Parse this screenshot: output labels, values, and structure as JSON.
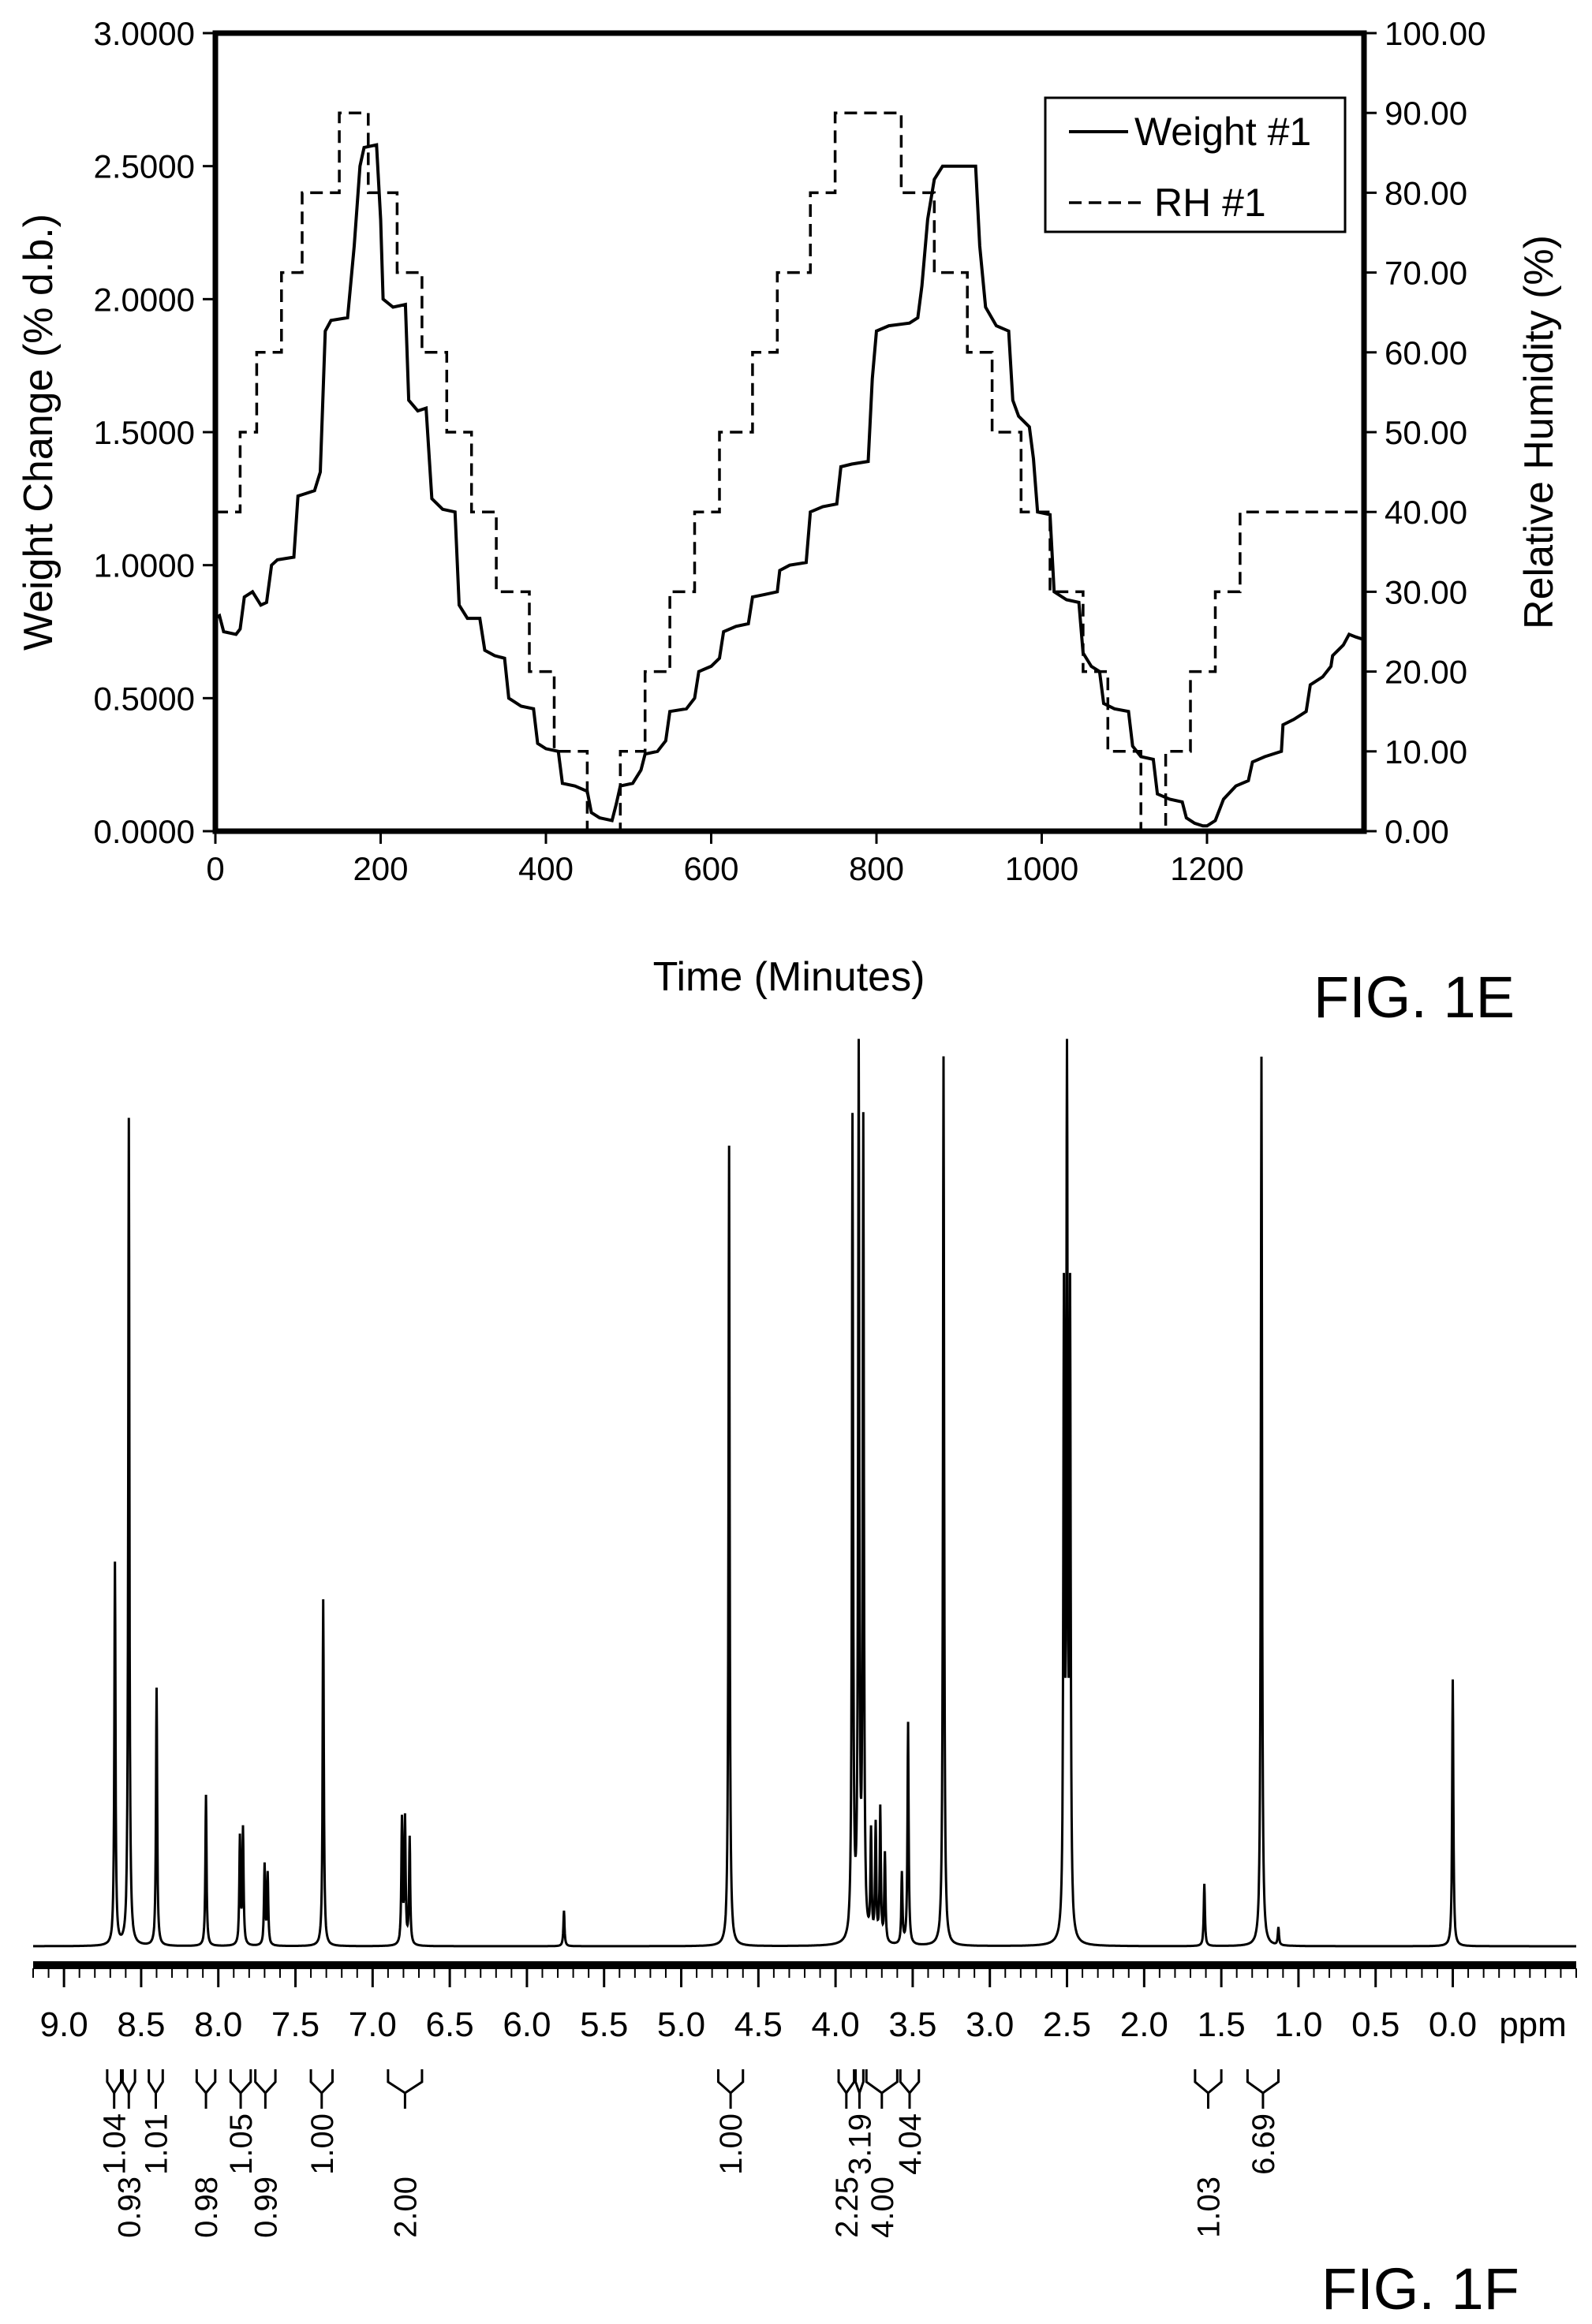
{
  "chart_data": [
    {
      "figure_label": "FIG. 1E",
      "type": "line",
      "xlabel": "Time (Minutes)",
      "ylabel_left": "Weight Change (% d.b.)",
      "ylabel_right": "Relative Humidity (%)",
      "xlim": [
        0,
        1390
      ],
      "ylim_left": [
        0,
        3
      ],
      "ylim_right": [
        0,
        100
      ],
      "x_ticks": [
        "0",
        "200",
        "400",
        "600",
        "800",
        "1000",
        "1200"
      ],
      "y_ticks_left": [
        "0.0000",
        "0.5000",
        "1.0000",
        "1.5000",
        "2.0000",
        "2.5000",
        "3.0000"
      ],
      "y_ticks_right": [
        "0.00",
        "10.00",
        "20.00",
        "30.00",
        "40.00",
        "50.00",
        "60.00",
        "70.00",
        "80.00",
        "90.00",
        "100.00"
      ],
      "grid": false,
      "legend": "top-right",
      "series": [
        {
          "name": "Weight #1",
          "axis": "left",
          "style": "solid",
          "points": [
            [
              0,
              0.8
            ],
            [
              5,
              0.81
            ],
            [
              10,
              0.75
            ],
            [
              25,
              0.74
            ],
            [
              30,
              0.76
            ],
            [
              35,
              0.88
            ],
            [
              45,
              0.9
            ],
            [
              55,
              0.85
            ],
            [
              62,
              0.86
            ],
            [
              68,
              1.0
            ],
            [
              75,
              1.02
            ],
            [
              95,
              1.03
            ],
            [
              100,
              1.26
            ],
            [
              110,
              1.27
            ],
            [
              120,
              1.28
            ],
            [
              127,
              1.35
            ],
            [
              133,
              1.88
            ],
            [
              140,
              1.92
            ],
            [
              160,
              1.93
            ],
            [
              168,
              2.2
            ],
            [
              175,
              2.5
            ],
            [
              180,
              2.57
            ],
            [
              195,
              2.58
            ],
            [
              200,
              2.3
            ],
            [
              203,
              2.0
            ],
            [
              215,
              1.97
            ],
            [
              230,
              1.98
            ],
            [
              234,
              1.62
            ],
            [
              245,
              1.58
            ],
            [
              255,
              1.59
            ],
            [
              262,
              1.25
            ],
            [
              275,
              1.21
            ],
            [
              290,
              1.2
            ],
            [
              295,
              0.85
            ],
            [
              305,
              0.8
            ],
            [
              320,
              0.8
            ],
            [
              326,
              0.68
            ],
            [
              338,
              0.66
            ],
            [
              350,
              0.65
            ],
            [
              355,
              0.5
            ],
            [
              370,
              0.47
            ],
            [
              385,
              0.46
            ],
            [
              390,
              0.33
            ],
            [
              400,
              0.31
            ],
            [
              415,
              0.3
            ],
            [
              420,
              0.18
            ],
            [
              435,
              0.17
            ],
            [
              450,
              0.15
            ],
            [
              455,
              0.07
            ],
            [
              465,
              0.05
            ],
            [
              480,
              0.04
            ],
            [
              485,
              0.1
            ],
            [
              490,
              0.17
            ],
            [
              505,
              0.18
            ],
            [
              515,
              0.23
            ],
            [
              520,
              0.29
            ],
            [
              535,
              0.3
            ],
            [
              545,
              0.34
            ],
            [
              550,
              0.45
            ],
            [
              570,
              0.46
            ],
            [
              580,
              0.5
            ],
            [
              585,
              0.6
            ],
            [
              600,
              0.62
            ],
            [
              610,
              0.65
            ],
            [
              615,
              0.75
            ],
            [
              630,
              0.77
            ],
            [
              645,
              0.78
            ],
            [
              650,
              0.88
            ],
            [
              665,
              0.89
            ],
            [
              680,
              0.9
            ],
            [
              683,
              0.98
            ],
            [
              695,
              1.0
            ],
            [
              715,
              1.01
            ],
            [
              720,
              1.2
            ],
            [
              735,
              1.22
            ],
            [
              752,
              1.23
            ],
            [
              757,
              1.37
            ],
            [
              770,
              1.38
            ],
            [
              790,
              1.39
            ],
            [
              795,
              1.7
            ],
            [
              800,
              1.88
            ],
            [
              815,
              1.9
            ],
            [
              840,
              1.91
            ],
            [
              850,
              1.93
            ],
            [
              855,
              2.05
            ],
            [
              862,
              2.3
            ],
            [
              870,
              2.45
            ],
            [
              880,
              2.5
            ],
            [
              920,
              2.5
            ],
            [
              925,
              2.2
            ],
            [
              932,
              1.97
            ],
            [
              945,
              1.9
            ],
            [
              960,
              1.88
            ],
            [
              965,
              1.62
            ],
            [
              972,
              1.56
            ],
            [
              985,
              1.52
            ],
            [
              990,
              1.4
            ],
            [
              995,
              1.2
            ],
            [
              1010,
              1.19
            ],
            [
              1015,
              0.9
            ],
            [
              1030,
              0.87
            ],
            [
              1045,
              0.86
            ],
            [
              1050,
              0.67
            ],
            [
              1060,
              0.62
            ],
            [
              1070,
              0.6
            ],
            [
              1075,
              0.48
            ],
            [
              1088,
              0.46
            ],
            [
              1105,
              0.45
            ],
            [
              1110,
              0.32
            ],
            [
              1120,
              0.28
            ],
            [
              1135,
              0.27
            ],
            [
              1140,
              0.14
            ],
            [
              1155,
              0.12
            ],
            [
              1170,
              0.11
            ],
            [
              1175,
              0.05
            ],
            [
              1185,
              0.03
            ],
            [
              1195,
              0.02
            ],
            [
              1200,
              0.02
            ],
            [
              1210,
              0.04
            ],
            [
              1220,
              0.12
            ],
            [
              1235,
              0.17
            ],
            [
              1250,
              0.19
            ],
            [
              1255,
              0.26
            ],
            [
              1270,
              0.28
            ],
            [
              1290,
              0.3
            ],
            [
              1292,
              0.4
            ],
            [
              1305,
              0.42
            ],
            [
              1320,
              0.45
            ],
            [
              1325,
              0.55
            ],
            [
              1340,
              0.58
            ],
            [
              1350,
              0.62
            ],
            [
              1352,
              0.66
            ],
            [
              1365,
              0.7
            ],
            [
              1372,
              0.74
            ],
            [
              1380,
              0.73
            ],
            [
              1390,
              0.72
            ]
          ]
        },
        {
          "name": "RH #1",
          "axis": "right",
          "style": "dashed",
          "points": [
            [
              0,
              40
            ],
            [
              30,
              40
            ],
            [
              30,
              50
            ],
            [
              50,
              50
            ],
            [
              50,
              60
            ],
            [
              80,
              60
            ],
            [
              80,
              70
            ],
            [
              105,
              70
            ],
            [
              105,
              80
            ],
            [
              150,
              80
            ],
            [
              150,
              90
            ],
            [
              185,
              90
            ],
            [
              185,
              80
            ],
            [
              220,
              80
            ],
            [
              220,
              70
            ],
            [
              250,
              70
            ],
            [
              250,
              60
            ],
            [
              280,
              60
            ],
            [
              280,
              50
            ],
            [
              310,
              50
            ],
            [
              310,
              40
            ],
            [
              340,
              40
            ],
            [
              340,
              30
            ],
            [
              380,
              30
            ],
            [
              380,
              20
            ],
            [
              410,
              20
            ],
            [
              410,
              10
            ],
            [
              450,
              10
            ],
            [
              450,
              0
            ],
            [
              490,
              0
            ],
            [
              490,
              10
            ],
            [
              520,
              10
            ],
            [
              520,
              20
            ],
            [
              550,
              20
            ],
            [
              550,
              30
            ],
            [
              580,
              30
            ],
            [
              580,
              40
            ],
            [
              610,
              40
            ],
            [
              610,
              50
            ],
            [
              650,
              50
            ],
            [
              650,
              60
            ],
            [
              680,
              60
            ],
            [
              680,
              70
            ],
            [
              720,
              70
            ],
            [
              720,
              80
            ],
            [
              750,
              80
            ],
            [
              750,
              90
            ],
            [
              830,
              90
            ],
            [
              830,
              80
            ],
            [
              870,
              80
            ],
            [
              870,
              70
            ],
            [
              910,
              70
            ],
            [
              910,
              60
            ],
            [
              940,
              60
            ],
            [
              940,
              50
            ],
            [
              975,
              50
            ],
            [
              975,
              40
            ],
            [
              1010,
              40
            ],
            [
              1010,
              30
            ],
            [
              1050,
              30
            ],
            [
              1050,
              20
            ],
            [
              1080,
              20
            ],
            [
              1080,
              10
            ],
            [
              1120,
              10
            ],
            [
              1120,
              0
            ],
            [
              1150,
              0
            ],
            [
              1150,
              10
            ],
            [
              1180,
              10
            ],
            [
              1180,
              20
            ],
            [
              1210,
              20
            ],
            [
              1210,
              30
            ],
            [
              1240,
              30
            ],
            [
              1240,
              40
            ],
            [
              1390,
              40
            ]
          ]
        }
      ]
    },
    {
      "figure_label": "FIG. 1F",
      "type": "line",
      "xlabel": "ppm",
      "xlim": [
        9.2,
        -0.8
      ],
      "x_ticks": [
        "9.0",
        "8.5",
        "8.0",
        "7.5",
        "7.0",
        "6.5",
        "6.0",
        "5.5",
        "5.0",
        "4.5",
        "4.0",
        "3.5",
        "3.0",
        "2.5",
        "2.0",
        "1.5",
        "1.0",
        "0.5",
        "0.0"
      ],
      "grid": false,
      "peaks": [
        {
          "ppm": 8.67,
          "height": 0.43
        },
        {
          "ppm": 8.58,
          "height": 0.93
        },
        {
          "ppm": 8.4,
          "height": 0.29
        },
        {
          "ppm": 8.08,
          "height": 0.17
        },
        {
          "ppm": 7.86,
          "height": 0.12
        },
        {
          "ppm": 7.84,
          "height": 0.13
        },
        {
          "ppm": 7.7,
          "height": 0.09
        },
        {
          "ppm": 7.68,
          "height": 0.08
        },
        {
          "ppm": 7.32,
          "height": 0.39
        },
        {
          "ppm": 6.81,
          "height": 0.14
        },
        {
          "ppm": 6.79,
          "height": 0.14
        },
        {
          "ppm": 6.76,
          "height": 0.12
        },
        {
          "ppm": 5.76,
          "height": 0.04
        },
        {
          "ppm": 4.69,
          "height": 0.9
        },
        {
          "ppm": 3.89,
          "height": 0.92
        },
        {
          "ppm": 3.85,
          "height": 1.0
        },
        {
          "ppm": 3.82,
          "height": 0.91
        },
        {
          "ppm": 3.77,
          "height": 0.12
        },
        {
          "ppm": 3.74,
          "height": 0.13
        },
        {
          "ppm": 3.71,
          "height": 0.15
        },
        {
          "ppm": 3.68,
          "height": 0.1
        },
        {
          "ppm": 3.57,
          "height": 0.08
        },
        {
          "ppm": 3.53,
          "height": 0.25
        },
        {
          "ppm": 3.3,
          "height": 1.0
        },
        {
          "ppm": 2.52,
          "height": 0.7
        },
        {
          "ppm": 2.5,
          "height": 1.0
        },
        {
          "ppm": 2.48,
          "height": 0.7
        },
        {
          "ppm": 1.61,
          "height": 0.07
        },
        {
          "ppm": 1.24,
          "height": 1.0
        },
        {
          "ppm": 1.13,
          "height": 0.02
        },
        {
          "ppm": 0.0,
          "height": 0.3
        }
      ],
      "integrals": [
        {
          "label": "1.04",
          "from": 8.72,
          "to": 8.63
        },
        {
          "label": "0.93",
          "from": 8.62,
          "to": 8.54
        },
        {
          "label": "1.01",
          "from": 8.45,
          "to": 8.36
        },
        {
          "label": "0.98",
          "from": 8.14,
          "to": 8.02
        },
        {
          "label": "1.05",
          "from": 7.92,
          "to": 7.79
        },
        {
          "label": "0.99",
          "from": 7.76,
          "to": 7.63
        },
        {
          "label": "1.00",
          "from": 7.4,
          "to": 7.26
        },
        {
          "label": "2.00",
          "from": 6.9,
          "to": 6.68
        },
        {
          "label": "1.00",
          "from": 4.76,
          "to": 4.6
        },
        {
          "label": "2.25",
          "from": 3.98,
          "to": 3.88
        },
        {
          "label": "3.19",
          "from": 3.87,
          "to": 3.82
        },
        {
          "label": "4.00",
          "from": 3.8,
          "to": 3.6
        },
        {
          "label": "4.04",
          "from": 3.58,
          "to": 3.46
        },
        {
          "label": "1.03",
          "from": 1.67,
          "to": 1.5
        },
        {
          "label": "6.69",
          "from": 1.33,
          "to": 1.13
        }
      ]
    }
  ]
}
